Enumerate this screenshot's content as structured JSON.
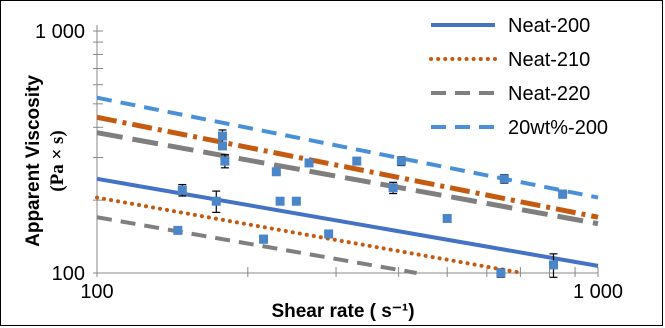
{
  "chart_data": {
    "type": "line",
    "xscale": "log",
    "yscale": "log",
    "xlim": [
      100,
      1000
    ],
    "ylim": [
      100,
      1000
    ],
    "xlabel": "Shear rate ( s⁻¹)",
    "ylabel_line1": "Apparent Viscosity",
    "ylabel_line2": "(Pa × s)",
    "x_ticks": [
      "100",
      "1 000"
    ],
    "y_ticks": [
      "1 000",
      "100"
    ],
    "legend_position": "top-right",
    "series": [
      {
        "name": "Neat-200",
        "style": "solid",
        "color": "#4472C4",
        "x": [
          100,
          1000
        ],
        "y": [
          245,
          107
        ]
      },
      {
        "name": "Neat-210",
        "style": "dotted",
        "color": "#C55A11",
        "x": [
          100,
          1000
        ],
        "y": [
          205,
          88
        ]
      },
      {
        "name": "Neat-220",
        "style": "dashed",
        "color": "#7F7F7F",
        "x": [
          100,
          1000
        ],
        "y": [
          170,
          74
        ]
      },
      {
        "name": "20wt%-200",
        "style": "dashed",
        "color": "#4A90D9",
        "x": [
          100,
          1000
        ],
        "y": [
          530,
          205
        ]
      },
      {
        "name": "",
        "style": "dashdot",
        "color": "#C55A11",
        "x": [
          100,
          1000
        ],
        "y": [
          440,
          170
        ]
      },
      {
        "name": "",
        "style": "longdash",
        "color": "#7F7F7F",
        "x": [
          100,
          1000
        ],
        "y": [
          380,
          160
        ]
      }
    ],
    "points": [
      {
        "x": 148,
        "y": 220,
        "err": 12
      },
      {
        "x": 173,
        "y": 198,
        "err": 20
      },
      {
        "x": 178,
        "y": 368,
        "err": 22
      },
      {
        "x": 178,
        "y": 335,
        "err": 10
      },
      {
        "x": 180,
        "y": 290,
        "err": 18
      },
      {
        "x": 228,
        "y": 262,
        "err": 8
      },
      {
        "x": 250,
        "y": 198,
        "err": 6
      },
      {
        "x": 330,
        "y": 290,
        "err": 8
      },
      {
        "x": 405,
        "y": 290,
        "err": 12
      },
      {
        "x": 650,
        "y": 245,
        "err": 10
      },
      {
        "x": 145,
        "y": 150,
        "err": 5
      },
      {
        "x": 232,
        "y": 198,
        "err": 6
      },
      {
        "x": 265,
        "y": 285,
        "err": 6
      },
      {
        "x": 500,
        "y": 168,
        "err": 5
      },
      {
        "x": 215,
        "y": 138,
        "err": 5
      },
      {
        "x": 290,
        "y": 145,
        "err": 5
      },
      {
        "x": 390,
        "y": 225,
        "err": 12
      },
      {
        "x": 850,
        "y": 212,
        "err": 8
      },
      {
        "x": 640,
        "y": 100,
        "err": 4
      },
      {
        "x": 815,
        "y": 108,
        "err": 12
      }
    ]
  }
}
